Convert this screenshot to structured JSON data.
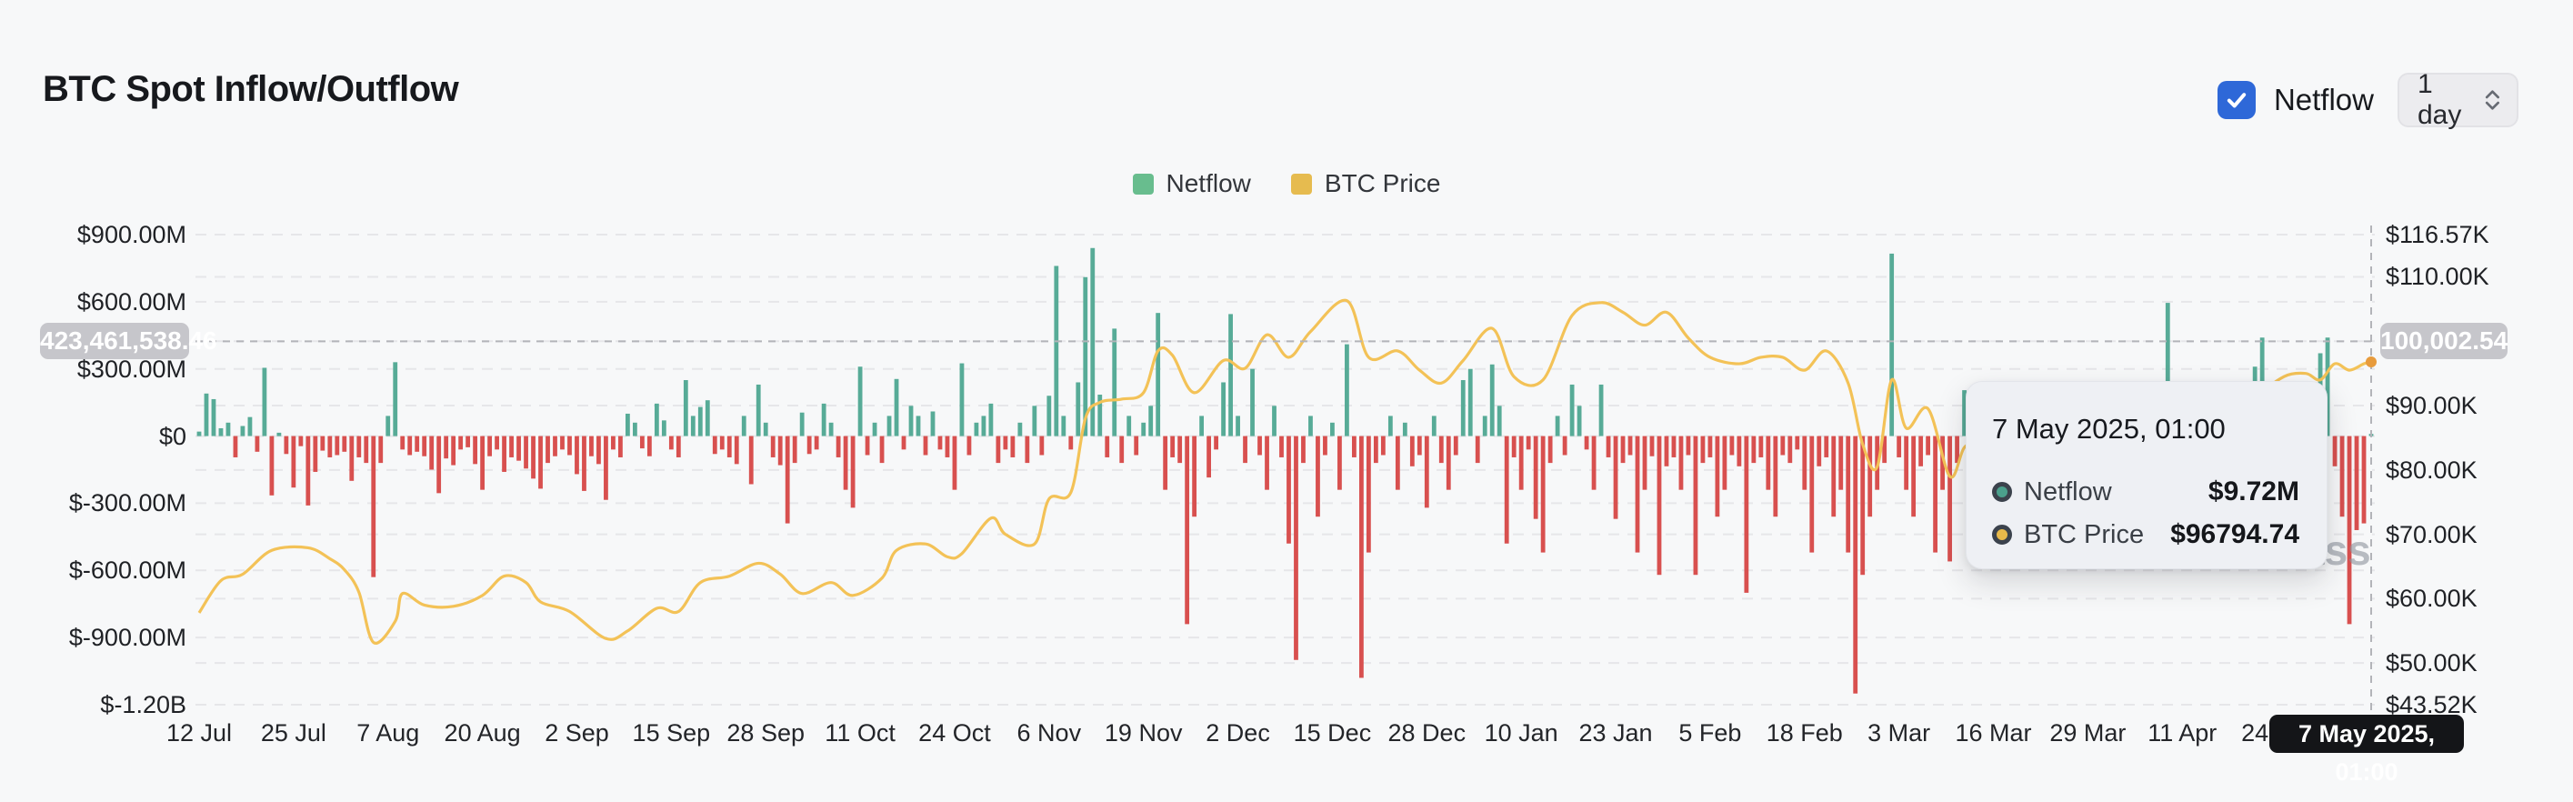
{
  "header": {
    "title": "BTC Spot Inflow/Outflow",
    "netflow_toggle_label": "Netflow",
    "netflow_checked": true,
    "interval": "1 day"
  },
  "legend": {
    "items": [
      {
        "label": "Netflow",
        "color": "#68bd8e"
      },
      {
        "label": "BTC Price",
        "color": "#e6bb4f"
      }
    ]
  },
  "watermark": "ass",
  "crosshair": {
    "left_value": "423,461,538.46",
    "right_value": "100,002.54",
    "netflow_value_m": 423.46,
    "price_value_k": 100.0,
    "date_label": "7 May 2025, 01:00"
  },
  "tooltip": {
    "title": "7 May 2025, 01:00",
    "rows": [
      {
        "name": "Netflow",
        "value": "$9.72M",
        "color": "#4ba08c"
      },
      {
        "name": "BTC Price",
        "value": "$96794.74",
        "color": "#e8b94a"
      }
    ]
  },
  "colors": {
    "bar_positive": "#57ab97",
    "bar_negative": "#d8504f",
    "price_line": "#f3c257",
    "price_dot": "#e79b3c",
    "grid": "#e6e6e9",
    "crosshair": "#b3b4b9",
    "accent_blue": "#2e68d8"
  },
  "chart_data": {
    "type": "combo",
    "title": "BTC Spot Inflow/Outflow",
    "left_axis": {
      "unit": "USD",
      "range_m": [
        -1200,
        900
      ],
      "ticks": [
        {
          "v": 900,
          "label": "$900.00M"
        },
        {
          "v": 600,
          "label": "$600.00M"
        },
        {
          "v": 300,
          "label": "$300.00M"
        },
        {
          "v": 0,
          "label": "$0"
        },
        {
          "v": -300,
          "label": "$-300.00M"
        },
        {
          "v": -600,
          "label": "$-600.00M"
        },
        {
          "v": -900,
          "label": "$-900.00M"
        },
        {
          "v": -1200,
          "label": "$-1.20B"
        }
      ]
    },
    "right_axis": {
      "unit": "USD",
      "range_k": [
        43.52,
        116.57
      ],
      "ticks": [
        {
          "v": 116.57,
          "label": "$116.57K"
        },
        {
          "v": 110,
          "label": "$110.00K"
        },
        {
          "v": 90,
          "label": "$90.00K"
        },
        {
          "v": 80,
          "label": "$80.00K"
        },
        {
          "v": 70,
          "label": "$70.00K"
        },
        {
          "v": 60,
          "label": "$60.00K"
        },
        {
          "v": 50,
          "label": "$50.00K"
        },
        {
          "v": 43.52,
          "label": "$43.52K"
        }
      ],
      "hidden_tick_behind_badge": {
        "v": 100,
        "label": "$100.00K"
      },
      "gridline_values": [
        110,
        100,
        90,
        80,
        70,
        60,
        50
      ]
    },
    "x_ticks": [
      {
        "d": 0,
        "label": "12 Jul"
      },
      {
        "d": 13,
        "label": "25 Jul"
      },
      {
        "d": 26,
        "label": "7 Aug"
      },
      {
        "d": 39,
        "label": "20 Aug"
      },
      {
        "d": 52,
        "label": "2 Sep"
      },
      {
        "d": 65,
        "label": "15 Sep"
      },
      {
        "d": 78,
        "label": "28 Sep"
      },
      {
        "d": 91,
        "label": "11 Oct"
      },
      {
        "d": 104,
        "label": "24 Oct"
      },
      {
        "d": 117,
        "label": "6 Nov"
      },
      {
        "d": 130,
        "label": "19 Nov"
      },
      {
        "d": 143,
        "label": "2 Dec"
      },
      {
        "d": 156,
        "label": "15 Dec"
      },
      {
        "d": 169,
        "label": "28 Dec"
      },
      {
        "d": 182,
        "label": "10 Jan"
      },
      {
        "d": 195,
        "label": "23 Jan"
      },
      {
        "d": 208,
        "label": "5 Feb"
      },
      {
        "d": 221,
        "label": "18 Feb"
      },
      {
        "d": 234,
        "label": "3 Mar"
      },
      {
        "d": 247,
        "label": "16 Mar"
      },
      {
        "d": 260,
        "label": "29 Mar"
      },
      {
        "d": 273,
        "label": "11 Apr"
      },
      {
        "d": 286,
        "label": "24 Apr"
      }
    ],
    "series": [
      {
        "name": "Netflow",
        "type": "bar",
        "unit": "$M",
        "values": [
          20,
          190,
          165,
          35,
          60,
          -95,
          45,
          85,
          -70,
          305,
          -265,
          15,
          -80,
          -230,
          -45,
          -310,
          -160,
          -65,
          -95,
          -85,
          -70,
          -200,
          -95,
          -120,
          -630,
          -120,
          90,
          330,
          -60,
          -85,
          -70,
          -90,
          -150,
          -255,
          -100,
          -130,
          -60,
          -50,
          -125,
          -240,
          -90,
          -60,
          -160,
          -95,
          -110,
          -145,
          -190,
          -235,
          -120,
          -90,
          -60,
          -85,
          -170,
          -245,
          -90,
          -125,
          -285,
          -60,
          -95,
          100,
          60,
          -55,
          -90,
          145,
          70,
          -60,
          -95,
          250,
          90,
          130,
          160,
          -80,
          -60,
          -95,
          -125,
          90,
          -215,
          230,
          60,
          -95,
          -130,
          -390,
          -120,
          105,
          -80,
          -60,
          145,
          60,
          -95,
          -240,
          -320,
          310,
          -85,
          60,
          -120,
          90,
          255,
          -60,
          135,
          90,
          -85,
          110,
          -60,
          -95,
          -240,
          325,
          -85,
          60,
          90,
          145,
          -120,
          -60,
          -95,
          60,
          -120,
          135,
          -85,
          180,
          760,
          90,
          -60,
          240,
          710,
          840,
          185,
          -95,
          480,
          -120,
          90,
          -85,
          60,
          135,
          550,
          -240,
          -95,
          -120,
          -840,
          -360,
          90,
          -185,
          -60,
          240,
          545,
          90,
          -120,
          300,
          -85,
          -240,
          135,
          -95,
          -480,
          -1000,
          -120,
          90,
          -360,
          -85,
          60,
          -240,
          410,
          -95,
          -1080,
          -520,
          -120,
          -85,
          90,
          -240,
          60,
          -135,
          -85,
          -320,
          90,
          -120,
          -240,
          -85,
          250,
          300,
          -120,
          90,
          320,
          135,
          -480,
          -95,
          -240,
          -60,
          -370,
          -520,
          -120,
          90,
          -85,
          230,
          135,
          -60,
          -240,
          230,
          -95,
          -370,
          -120,
          -85,
          -520,
          -240,
          -90,
          -620,
          -135,
          -95,
          -240,
          -85,
          -620,
          -120,
          -95,
          -360,
          -240,
          -85,
          -135,
          -700,
          -120,
          -95,
          -240,
          -360,
          -85,
          -120,
          -60,
          -240,
          -520,
          -135,
          -95,
          -360,
          -240,
          -520,
          -1150,
          -620,
          -360,
          -240,
          -120,
          815,
          -95,
          -240,
          -360,
          -135,
          -85,
          -520,
          -240,
          -560,
          -120,
          205,
          -85,
          135,
          -60,
          -240,
          -95,
          90,
          -135,
          -240,
          60,
          -85,
          135,
          -95,
          240,
          -120,
          -60,
          -240,
          -85,
          -135,
          -360,
          -240,
          -135,
          -520,
          -95,
          -240,
          -85,
          -360,
          -135,
          595,
          -95,
          -60,
          240,
          -85,
          135,
          90,
          -120,
          240,
          -60,
          90,
          -85,
          310,
          440,
          -95,
          135,
          60,
          -120,
          90,
          -85,
          -85,
          370,
          440,
          -135,
          -360,
          -840,
          -420,
          -390,
          9.72
        ]
      },
      {
        "name": "BTC Price",
        "type": "line",
        "unit": "$K",
        "anchors": [
          [
            0,
            57.8
          ],
          [
            3,
            62.8
          ],
          [
            6,
            63.8
          ],
          [
            10,
            67.5
          ],
          [
            15,
            67.9
          ],
          [
            18,
            66.2
          ],
          [
            20,
            64.5
          ],
          [
            22,
            61.0
          ],
          [
            24,
            53.2
          ],
          [
            27,
            56.5
          ],
          [
            28,
            60.8
          ],
          [
            31,
            59.0
          ],
          [
            35,
            58.8
          ],
          [
            39,
            60.5
          ],
          [
            42,
            63.5
          ],
          [
            45,
            62.5
          ],
          [
            47,
            59.5
          ],
          [
            51,
            58.0
          ],
          [
            56,
            53.8
          ],
          [
            59,
            55.0
          ],
          [
            63,
            58.5
          ],
          [
            66,
            58.0
          ],
          [
            69,
            62.5
          ],
          [
            73,
            63.5
          ],
          [
            77,
            65.5
          ],
          [
            80,
            63.8
          ],
          [
            83,
            60.8
          ],
          [
            87,
            62.5
          ],
          [
            90,
            60.5
          ],
          [
            94,
            63.2
          ],
          [
            96,
            67.5
          ],
          [
            100,
            68.5
          ],
          [
            103,
            66.5
          ],
          [
            105,
            67.0
          ],
          [
            109,
            72.5
          ],
          [
            111,
            70.0
          ],
          [
            115,
            68.5
          ],
          [
            117,
            75.5
          ],
          [
            120,
            76.5
          ],
          [
            122,
            88.0
          ],
          [
            124,
            90.5
          ],
          [
            127,
            91.0
          ],
          [
            130,
            92.0
          ],
          [
            132,
            98.5
          ],
          [
            134,
            97.8
          ],
          [
            137,
            92.0
          ],
          [
            141,
            97.0
          ],
          [
            144,
            95.8
          ],
          [
            147,
            101.0
          ],
          [
            150,
            97.5
          ],
          [
            153,
            101.5
          ],
          [
            158,
            106.3
          ],
          [
            161,
            97.5
          ],
          [
            165,
            98.5
          ],
          [
            168,
            95.5
          ],
          [
            171,
            93.5
          ],
          [
            174,
            97.0
          ],
          [
            178,
            102.0
          ],
          [
            181,
            94.5
          ],
          [
            185,
            94.0
          ],
          [
            189,
            104.0
          ],
          [
            193,
            106.0
          ],
          [
            196,
            104.5
          ],
          [
            199,
            102.5
          ],
          [
            202,
            104.5
          ],
          [
            205,
            100.5
          ],
          [
            208,
            97.5
          ],
          [
            212,
            96.5
          ],
          [
            215,
            97.5
          ],
          [
            218,
            97.5
          ],
          [
            221,
            95.5
          ],
          [
            224,
            98.5
          ],
          [
            227,
            93.5
          ],
          [
            229,
            84.0
          ],
          [
            231,
            80.5
          ],
          [
            233,
            94.0
          ],
          [
            235,
            86.5
          ],
          [
            238,
            89.5
          ],
          [
            241,
            79.0
          ],
          [
            243,
            83.5
          ],
          [
            245,
            84.0
          ],
          [
            248,
            84.0
          ],
          [
            251,
            86.5
          ],
          [
            255,
            87.5
          ],
          [
            257,
            86.5
          ],
          [
            260,
            82.5
          ],
          [
            263,
            85.0
          ],
          [
            265,
            82.5
          ],
          [
            268,
            78.5
          ],
          [
            270,
            76.5
          ],
          [
            272,
            82.0
          ],
          [
            275,
            84.5
          ],
          [
            278,
            84.0
          ],
          [
            282,
            85.0
          ],
          [
            284,
            91.5
          ],
          [
            287,
            94.5
          ],
          [
            290,
            95.0
          ],
          [
            292,
            94.0
          ],
          [
            294,
            96.5
          ],
          [
            296,
            95.5
          ],
          [
            298,
            96.5
          ],
          [
            299,
            96.79
          ]
        ]
      }
    ],
    "hover_day_index": 299
  }
}
